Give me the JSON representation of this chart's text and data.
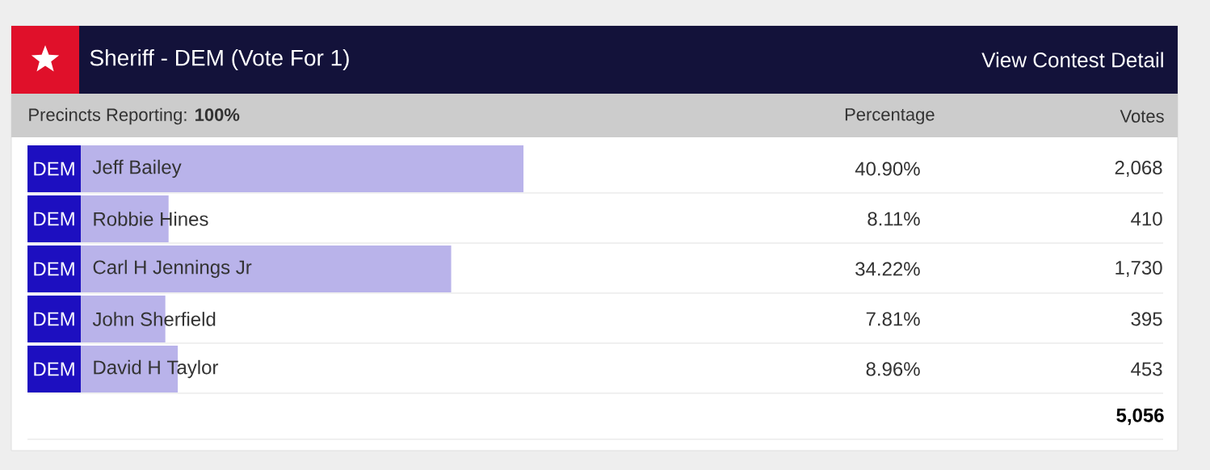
{
  "chart_data": {
    "type": "bar",
    "orientation": "horizontal",
    "title": "Sheriff - DEM (Vote For 1)",
    "subtitle": "Precincts Reporting: **100%**",
    "categories": [
      "Jeff Bailey",
      "Robbie Hines",
      "Carl H Jennings Jr",
      "John Sherfield",
      "David H Taylor"
    ],
    "values": [
      40.9,
      8.11,
      34.22,
      7.81,
      8.96
    ],
    "value_labels": [
      "40.90%",
      "8.11%",
      "34.22%",
      "7.81%",
      "8.96%"
    ],
    "color": "#b9b3ea",
    "xlim": [
      0,
      100
    ],
    "annotations": [
      "View Contest Detail",
      "Percentage",
      "Votes",
      "DEM",
      "DEM",
      "DEM",
      "DEM",
      "DEM",
      "2,068",
      "410",
      "1,730",
      "395",
      "453",
      "5,056"
    ]
  }
}
